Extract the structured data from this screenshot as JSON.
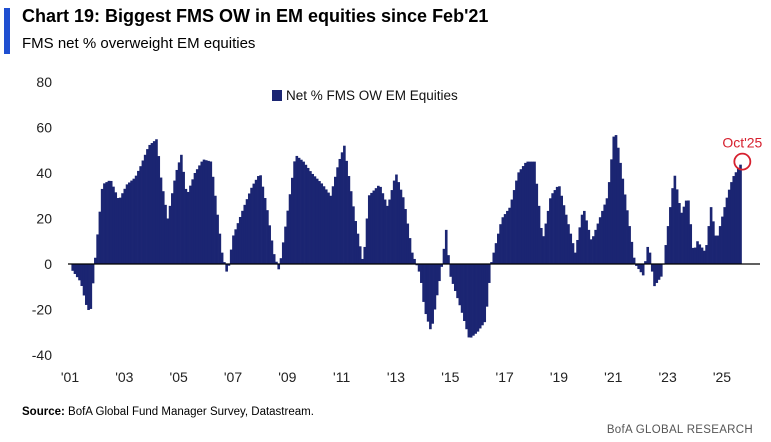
{
  "header": {
    "title": "Chart 19: Biggest FMS OW in EM equities since Feb'21",
    "subtitle": "FMS net % overweight EM equities"
  },
  "footer": {
    "source_label": "Source:",
    "source_text": " BofA Global Fund Manager Survey, Datastream.",
    "brand": "BofA GLOBAL RESEARCH"
  },
  "colors": {
    "accent": "#1f4fd1",
    "bar": "#1b2572",
    "annotation": "#d6202e"
  },
  "chart_data": {
    "type": "bar",
    "ylim": [
      -40,
      80
    ],
    "yticks": [
      80,
      60,
      40,
      20,
      0,
      -20,
      -40
    ],
    "xlim": [
      2001.0,
      2026.4
    ],
    "xtick_values": [
      2001,
      2003,
      2005,
      2007,
      2009,
      2011,
      2013,
      2015,
      2017,
      2019,
      2021,
      2023,
      2025
    ],
    "xtick_labels": [
      "'01",
      "'03",
      "'05",
      "'07",
      "'09",
      "'11",
      "'13",
      "'15",
      "'17",
      "'19",
      "'21",
      "'23",
      "'25"
    ],
    "legend": "top-center",
    "grid": false,
    "series": [
      {
        "name": "Net % FMS OW EM Equities",
        "keypoints": [
          [
            2001.1,
            -3
          ],
          [
            2001.4,
            -8
          ],
          [
            2001.6,
            -18
          ],
          [
            2001.75,
            -22
          ],
          [
            2001.95,
            5
          ],
          [
            2002.2,
            35
          ],
          [
            2002.5,
            37
          ],
          [
            2002.8,
            28
          ],
          [
            2003.1,
            35
          ],
          [
            2003.4,
            38
          ],
          [
            2003.6,
            43
          ],
          [
            2003.9,
            52
          ],
          [
            2004.2,
            55
          ],
          [
            2004.35,
            38
          ],
          [
            2004.6,
            20
          ],
          [
            2004.9,
            40
          ],
          [
            2005.1,
            48
          ],
          [
            2005.3,
            30
          ],
          [
            2005.6,
            40
          ],
          [
            2005.9,
            46
          ],
          [
            2006.2,
            45
          ],
          [
            2006.45,
            20
          ],
          [
            2006.6,
            5
          ],
          [
            2006.8,
            -5
          ],
          [
            2007.0,
            12
          ],
          [
            2007.4,
            25
          ],
          [
            2007.7,
            34
          ],
          [
            2008.0,
            40
          ],
          [
            2008.25,
            25
          ],
          [
            2008.5,
            5
          ],
          [
            2008.7,
            -3
          ],
          [
            2009.0,
            22
          ],
          [
            2009.3,
            48
          ],
          [
            2009.6,
            45
          ],
          [
            2009.9,
            40
          ],
          [
            2010.3,
            35
          ],
          [
            2010.6,
            30
          ],
          [
            2010.9,
            45
          ],
          [
            2011.1,
            52
          ],
          [
            2011.5,
            20
          ],
          [
            2011.8,
            0
          ],
          [
            2012.0,
            30
          ],
          [
            2012.4,
            35
          ],
          [
            2012.7,
            25
          ],
          [
            2013.0,
            40
          ],
          [
            2013.3,
            28
          ],
          [
            2013.6,
            5
          ],
          [
            2013.9,
            -5
          ],
          [
            2014.05,
            -20
          ],
          [
            2014.3,
            -30
          ],
          [
            2014.7,
            0
          ],
          [
            2014.85,
            15
          ],
          [
            2015.0,
            -5
          ],
          [
            2015.4,
            -20
          ],
          [
            2015.7,
            -33
          ],
          [
            2016.0,
            -30
          ],
          [
            2016.3,
            -25
          ],
          [
            2016.5,
            0
          ],
          [
            2016.7,
            10
          ],
          [
            2016.9,
            20
          ],
          [
            2017.2,
            25
          ],
          [
            2017.5,
            40
          ],
          [
            2017.8,
            45
          ],
          [
            2018.1,
            45
          ],
          [
            2018.4,
            10
          ],
          [
            2018.7,
            30
          ],
          [
            2019.0,
            35
          ],
          [
            2019.3,
            20
          ],
          [
            2019.6,
            5
          ],
          [
            2019.9,
            25
          ],
          [
            2020.2,
            10
          ],
          [
            2020.5,
            20
          ],
          [
            2020.8,
            30
          ],
          [
            2021.05,
            60
          ],
          [
            2021.2,
            50
          ],
          [
            2021.5,
            25
          ],
          [
            2021.8,
            0
          ],
          [
            2022.1,
            -5
          ],
          [
            2022.3,
            10
          ],
          [
            2022.5,
            -10
          ],
          [
            2022.8,
            -5
          ],
          [
            2023.05,
            20
          ],
          [
            2023.25,
            40
          ],
          [
            2023.5,
            22
          ],
          [
            2023.75,
            30
          ],
          [
            2023.95,
            5
          ],
          [
            2024.1,
            10
          ],
          [
            2024.4,
            5
          ],
          [
            2024.6,
            25
          ],
          [
            2024.8,
            10
          ],
          [
            2025.0,
            20
          ],
          [
            2025.2,
            30
          ],
          [
            2025.4,
            38
          ],
          [
            2025.75,
            45
          ]
        ]
      }
    ],
    "annotation": {
      "label": "Oct'25",
      "x": 2025.75,
      "y": 45
    }
  }
}
